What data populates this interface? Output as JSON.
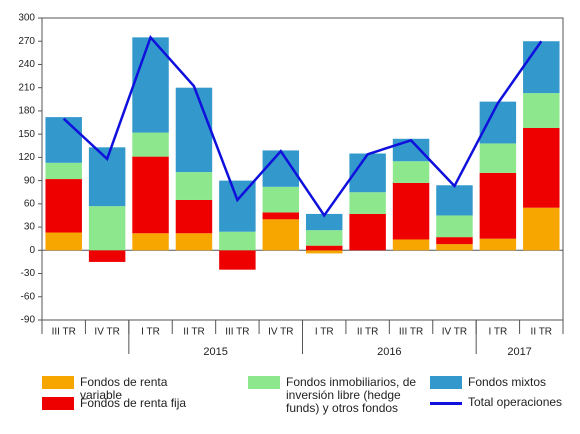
{
  "chart_data": {
    "type": "bar",
    "stacked": true,
    "categories": [
      "III TR",
      "IV TR",
      "I TR",
      "II TR",
      "III TR",
      "IV TR",
      "I TR",
      "II TR",
      "III TR",
      "IV TR",
      "I TR",
      "II TR"
    ],
    "groups": [
      {
        "label": "2015",
        "start": 2,
        "end": 5
      },
      {
        "label": "2016",
        "start": 6,
        "end": 9
      },
      {
        "label": "2017",
        "start": 10,
        "end": 11
      }
    ],
    "series": [
      {
        "name": "Fondos de renta variable",
        "color": "#f7a600",
        "values": [
          23,
          0,
          22,
          22,
          0,
          40,
          -4,
          0,
          14,
          8,
          15,
          55
        ]
      },
      {
        "name": "Fondos de renta fija",
        "color": "#ee0000",
        "values": [
          69,
          -15,
          99,
          43,
          -25,
          9,
          6,
          47,
          73,
          9,
          85,
          103
        ]
      },
      {
        "name": "Fondos inmobiliarios, de inversión libre (hedge funds) y otros fondos",
        "color": "#8de88d",
        "values": [
          21,
          57,
          31,
          36,
          24,
          33,
          20,
          28,
          28,
          28,
          38,
          45
        ]
      },
      {
        "name": "Fondos mixtos",
        "color": "#3399cc",
        "values": [
          59,
          76,
          123,
          109,
          66,
          47,
          21,
          50,
          29,
          39,
          54,
          67
        ]
      },
      {
        "name": "Total operaciones",
        "color": "#1010dd",
        "type": "line",
        "values": [
          170,
          118,
          275,
          212,
          65,
          128,
          45,
          124,
          142,
          83,
          190,
          270
        ]
      }
    ],
    "ylim": [
      -90,
      300
    ],
    "yticks": [
      -90,
      -60,
      -30,
      0,
      30,
      60,
      90,
      120,
      150,
      180,
      210,
      240,
      270,
      300
    ]
  }
}
